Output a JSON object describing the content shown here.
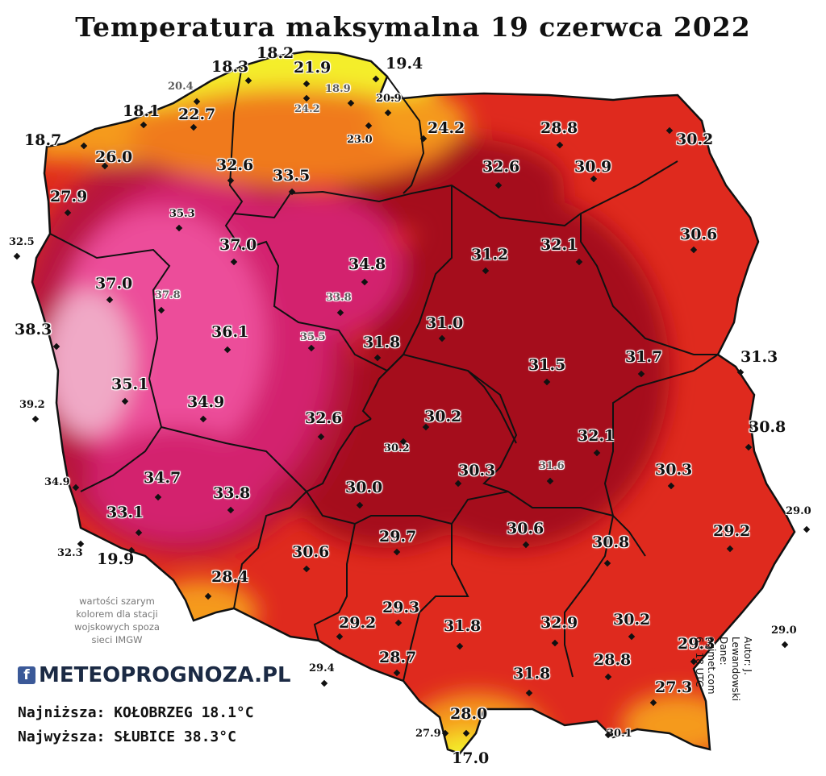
{
  "title": "Temperatura maksymalna 19 czerwca 2022",
  "colors": {
    "coast_yellow": "#f4ee2a",
    "orange": "#f59a1e",
    "red": "#df2a1e",
    "dark_red": "#a5101c",
    "magenta": "#d3246e",
    "pink": "#ec4e9a",
    "light_pink": "#f0a9c6",
    "border": "#111111"
  },
  "stations": [
    {
      "value": "18.2",
      "size": "big"
    },
    {
      "value": "18.3",
      "size": "big"
    },
    {
      "value": "19.4",
      "size": "big"
    },
    {
      "value": "21.9",
      "size": "big"
    },
    {
      "value": "20.4",
      "size": "small",
      "grey": true
    },
    {
      "value": "18.9",
      "size": "small",
      "grey": true
    },
    {
      "value": "22.7",
      "size": "big"
    },
    {
      "value": "18.1",
      "size": "big"
    },
    {
      "value": "24.2",
      "size": "small",
      "grey": true
    },
    {
      "value": "20.9",
      "size": "small"
    },
    {
      "value": "18.7",
      "size": "big"
    },
    {
      "value": "23.0",
      "size": "small"
    },
    {
      "value": "24.2",
      "size": "big"
    },
    {
      "value": "28.8",
      "size": "big"
    },
    {
      "value": "30.2",
      "size": "big"
    },
    {
      "value": "26.0",
      "size": "big"
    },
    {
      "value": "32.6",
      "size": "big"
    },
    {
      "value": "33.5",
      "size": "big"
    },
    {
      "value": "32.6",
      "size": "big"
    },
    {
      "value": "30.9",
      "size": "big"
    },
    {
      "value": "27.9",
      "size": "big"
    },
    {
      "value": "35.3",
      "size": "small"
    },
    {
      "value": "30.6",
      "size": "big"
    },
    {
      "value": "32.5",
      "size": "small"
    },
    {
      "value": "37.0",
      "size": "big"
    },
    {
      "value": "34.8",
      "size": "big"
    },
    {
      "value": "31.2",
      "size": "big"
    },
    {
      "value": "32.1",
      "size": "big"
    },
    {
      "value": "37.0",
      "size": "big"
    },
    {
      "value": "37.8",
      "size": "small",
      "grey": true
    },
    {
      "value": "33.8",
      "size": "small",
      "grey": true
    },
    {
      "value": "38.3",
      "size": "big"
    },
    {
      "value": "36.1",
      "size": "big"
    },
    {
      "value": "35.5",
      "size": "small",
      "grey": true
    },
    {
      "value": "31.8",
      "size": "big"
    },
    {
      "value": "31.0",
      "size": "big"
    },
    {
      "value": "31.3",
      "size": "big"
    },
    {
      "value": "31.5",
      "size": "big"
    },
    {
      "value": "31.7",
      "size": "big"
    },
    {
      "value": "35.1",
      "size": "big"
    },
    {
      "value": "39.2",
      "size": "small"
    },
    {
      "value": "34.9",
      "size": "big"
    },
    {
      "value": "32.6",
      "size": "big"
    },
    {
      "value": "30.2",
      "size": "big"
    },
    {
      "value": "30.8",
      "size": "big"
    },
    {
      "value": "32.1",
      "size": "big"
    },
    {
      "value": "30.2",
      "size": "small"
    },
    {
      "value": "30.3",
      "size": "big"
    },
    {
      "value": "31.6",
      "size": "small",
      "grey": true
    },
    {
      "value": "30.3",
      "size": "big"
    },
    {
      "value": "34.9",
      "size": "small"
    },
    {
      "value": "34.7",
      "size": "big"
    },
    {
      "value": "30.0",
      "size": "big"
    },
    {
      "value": "33.8",
      "size": "big"
    },
    {
      "value": "33.1",
      "size": "big"
    },
    {
      "value": "29.0",
      "size": "small"
    },
    {
      "value": "29.7",
      "size": "big"
    },
    {
      "value": "30.6",
      "size": "big"
    },
    {
      "value": "29.2",
      "size": "big"
    },
    {
      "value": "32.3",
      "size": "small"
    },
    {
      "value": "19.9",
      "size": "big"
    },
    {
      "value": "30.6",
      "size": "big"
    },
    {
      "value": "30.8",
      "size": "big"
    },
    {
      "value": "28.4",
      "size": "big"
    },
    {
      "value": "29.3",
      "size": "big"
    },
    {
      "value": "29.2",
      "size": "big"
    },
    {
      "value": "31.8",
      "size": "big"
    },
    {
      "value": "32.9",
      "size": "big"
    },
    {
      "value": "30.2",
      "size": "big"
    },
    {
      "value": "29.0",
      "size": "small"
    },
    {
      "value": "28.7",
      "size": "big"
    },
    {
      "value": "29.3",
      "size": "big"
    },
    {
      "value": "29.4",
      "size": "small"
    },
    {
      "value": "28.8",
      "size": "big"
    },
    {
      "value": "31.8",
      "size": "big"
    },
    {
      "value": "27.3",
      "size": "big"
    },
    {
      "value": "28.0",
      "size": "big"
    },
    {
      "value": "27.9",
      "size": "small"
    },
    {
      "value": "30.1",
      "size": "small"
    },
    {
      "value": "17.0",
      "size": "big"
    }
  ],
  "note_lines": [
    "wartości szarym",
    "kolorem dla stacji",
    "wojskowych spoza",
    "sieci IMGW"
  ],
  "logo": {
    "fb": "f",
    "brand": "METEOPROGNOZA.PL",
    "icon": "facebook-icon"
  },
  "stats": {
    "lowest": "Najniższa: KOŁOBRZEG 18.1°C",
    "highest": "Najwyższa: SŁUBICE 38.3°C"
  },
  "author": {
    "line1": "Autor: J. Lewandowski",
    "line2": "Dane: ogimet.com",
    "line3": "6 - 18 UTC"
  }
}
